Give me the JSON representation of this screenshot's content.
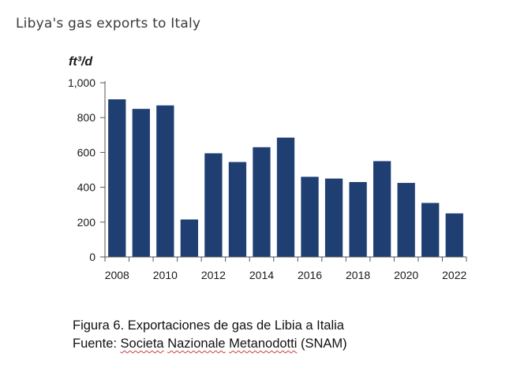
{
  "chart_data": {
    "type": "bar",
    "title": "Libya's gas exports to Italy",
    "unit_label": "ft³/d",
    "xlabel": "",
    "ylabel": "ft³/d",
    "categories": [
      "2008",
      "2009",
      "2010",
      "2011",
      "2012",
      "2013",
      "2014",
      "2015",
      "2016",
      "2017",
      "2018",
      "2019",
      "2020",
      "2021",
      "2022"
    ],
    "values": [
      905,
      850,
      870,
      215,
      595,
      545,
      630,
      685,
      460,
      450,
      430,
      550,
      425,
      310,
      250
    ],
    "ylim": [
      0,
      1000
    ],
    "y_ticks": [
      0,
      200,
      400,
      600,
      800,
      1000
    ],
    "y_tick_labels": [
      "0",
      "200",
      "400",
      "600",
      "800",
      "1,000"
    ],
    "x_tick_labels": [
      "2008",
      "2010",
      "2012",
      "2014",
      "2016",
      "2018",
      "2020",
      "2022"
    ],
    "grid": false,
    "bar_color": "#1f3f73"
  },
  "caption": {
    "line1": "Figura 6. Exportaciones de gas de Libia a Italia",
    "line2_prefix": "Fuente: ",
    "line2_words": [
      "Societa",
      "Nazionale",
      "Metanodotti"
    ],
    "line2_suffix": " (SNAM)"
  }
}
